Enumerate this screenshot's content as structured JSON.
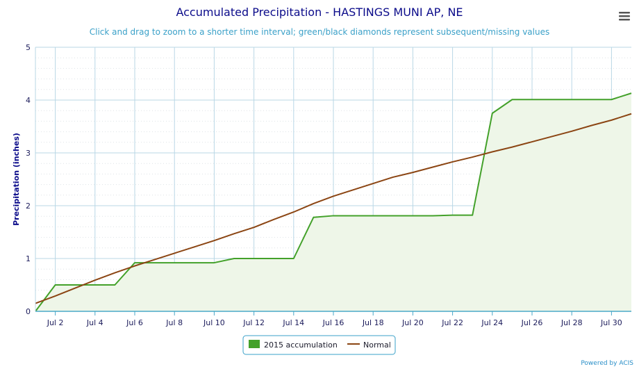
{
  "menu": {
    "icon": "hamburger-menu-icon"
  },
  "chart_data": {
    "type": "line",
    "title": "Accumulated Precipitation - HASTINGS MUNI AP, NE",
    "subtitle": "Click and drag to zoom to a shorter time interval; green/black diamonds represent subsequent/missing values",
    "ylabel": "Precipitation (inches)",
    "xlabel": "",
    "ylim": [
      0,
      5
    ],
    "yticks": [
      "0",
      "1",
      "2",
      "3",
      "4",
      "5"
    ],
    "xlim": [
      1,
      31
    ],
    "xticks": [
      {
        "day": 2,
        "label": "Jul 2"
      },
      {
        "day": 4,
        "label": "Jul 4"
      },
      {
        "day": 6,
        "label": "Jul 6"
      },
      {
        "day": 8,
        "label": "Jul 8"
      },
      {
        "day": 10,
        "label": "Jul 10"
      },
      {
        "day": 12,
        "label": "Jul 12"
      },
      {
        "day": 14,
        "label": "Jul 14"
      },
      {
        "day": 16,
        "label": "Jul 16"
      },
      {
        "day": 18,
        "label": "Jul 18"
      },
      {
        "day": 20,
        "label": "Jul 20"
      },
      {
        "day": 22,
        "label": "Jul 22"
      },
      {
        "day": 24,
        "label": "Jul 24"
      },
      {
        "day": 26,
        "label": "Jul 26"
      },
      {
        "day": 28,
        "label": "Jul 28"
      },
      {
        "day": 30,
        "label": "Jul 30"
      }
    ],
    "grid": true,
    "legend_position": "bottom-center",
    "series": [
      {
        "name": "2015 accumulation",
        "color": "#43a12a",
        "fill": "#eef6e8",
        "x": [
          1,
          2,
          3,
          4,
          5,
          6,
          7,
          8,
          9,
          10,
          11,
          12,
          13,
          14,
          15,
          16,
          17,
          18,
          19,
          20,
          21,
          22,
          23,
          24,
          25,
          26,
          27,
          28,
          29,
          30,
          31
        ],
        "values": [
          0.0,
          0.5,
          0.5,
          0.5,
          0.5,
          0.92,
          0.92,
          0.92,
          0.92,
          0.92,
          1.0,
          1.0,
          1.0,
          1.0,
          1.78,
          1.81,
          1.81,
          1.81,
          1.81,
          1.81,
          1.81,
          1.82,
          1.82,
          3.75,
          4.01,
          4.01,
          4.01,
          4.01,
          4.01,
          4.01,
          4.13
        ]
      },
      {
        "name": "Normal",
        "color": "#8b4513",
        "x": [
          1,
          2,
          3,
          4,
          5,
          6,
          7,
          8,
          9,
          10,
          11,
          12,
          13,
          14,
          15,
          16,
          17,
          18,
          19,
          20,
          21,
          22,
          23,
          24,
          25,
          26,
          27,
          28,
          29,
          30,
          31
        ],
        "values": [
          0.15,
          0.29,
          0.44,
          0.59,
          0.73,
          0.86,
          0.98,
          1.1,
          1.22,
          1.34,
          1.47,
          1.59,
          1.74,
          1.88,
          2.04,
          2.18,
          2.3,
          2.42,
          2.54,
          2.63,
          2.73,
          2.83,
          2.92,
          3.02,
          3.11,
          3.21,
          3.31,
          3.41,
          3.52,
          3.62,
          3.74
        ]
      }
    ]
  },
  "credits": "Powered by ACIS"
}
